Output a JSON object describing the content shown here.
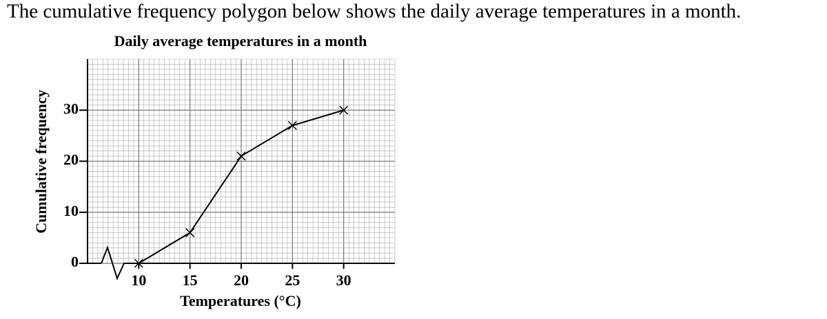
{
  "question": "The cumulative frequency polygon below shows the daily average temperatures in a month.",
  "chart_data": {
    "type": "line",
    "title": "Daily average temperatures in a month",
    "x_label": "Temperatures (°C)",
    "y_label": "Cumulative frequency",
    "x": [
      10,
      15,
      20,
      25,
      30
    ],
    "values": [
      0,
      6,
      21,
      27,
      30
    ],
    "color": "#000000",
    "marker": "x",
    "xlim": [
      5,
      35
    ],
    "ylim": [
      0,
      40
    ],
    "xticks": [
      10,
      15,
      20,
      25,
      30
    ],
    "yticks": [
      0,
      10,
      20,
      30
    ],
    "grid": true,
    "axis_break": true
  }
}
